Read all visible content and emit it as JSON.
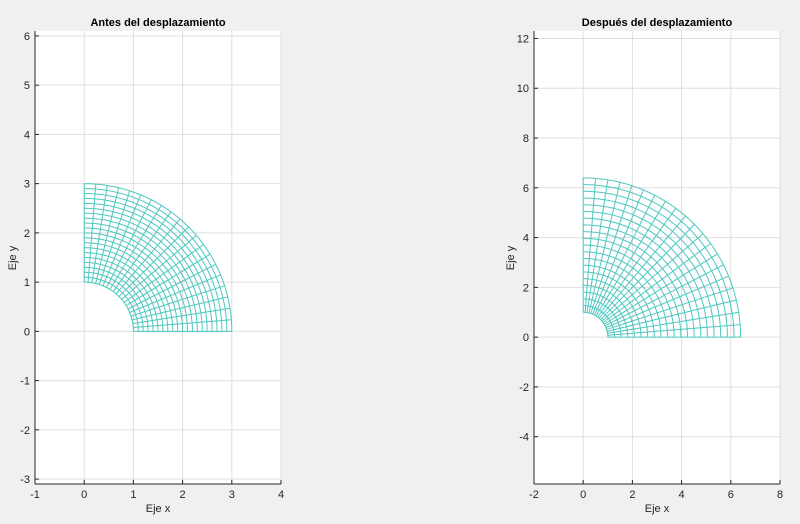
{
  "figure": {
    "background": "#f0f0f0",
    "mesh_color": "#4dc8be"
  },
  "chart_data": [
    {
      "type": "line",
      "title": "Antes del desplazamiento",
      "xlabel": "Eje x",
      "ylabel": "Eje y",
      "xlim": [
        -1,
        4
      ],
      "ylim": [
        -3.1,
        6.1
      ],
      "xticks": [
        -1,
        0,
        1,
        2,
        3,
        4
      ],
      "xtick_labels": [
        "-1",
        "0",
        "1",
        "2",
        "3",
        "4"
      ],
      "yticks": [
        -3,
        -2,
        -1,
        0,
        1,
        2,
        3,
        4,
        5,
        6
      ],
      "ytick_labels": [
        "-3",
        "-2",
        "-1",
        "0",
        "1",
        "2",
        "3",
        "4",
        "5",
        "6"
      ],
      "grid": true,
      "series": [
        {
          "mesh": "quarter-annulus polar grid",
          "inner_radius": 1,
          "outer_radius": 3,
          "angle_range_deg": [
            0,
            90
          ],
          "radial_divisions": 20,
          "angular_divisions": 20
        }
      ]
    },
    {
      "type": "line",
      "title": "Después del desplazamiento",
      "xlabel": "Eje x",
      "ylabel": "Eje y",
      "xlim": [
        -2,
        8
      ],
      "ylim": [
        -5.9,
        12.3
      ],
      "xticks": [
        -2,
        0,
        2,
        4,
        6,
        8
      ],
      "xtick_labels": [
        "-2",
        "0",
        "2",
        "4",
        "6",
        "8"
      ],
      "yticks": [
        -4,
        -2,
        0,
        2,
        4,
        6,
        8,
        10,
        12
      ],
      "ytick_labels": [
        "-4",
        "-2",
        "0",
        "2",
        "4",
        "6",
        "8",
        "10",
        "12"
      ],
      "grid": true,
      "series": [
        {
          "mesh": "quarter-annulus polar grid",
          "inner_radius": 1,
          "outer_radius": 6.4,
          "angle_range_deg": [
            0,
            90
          ],
          "radial_divisions": 20,
          "angular_divisions": 20
        }
      ]
    }
  ]
}
